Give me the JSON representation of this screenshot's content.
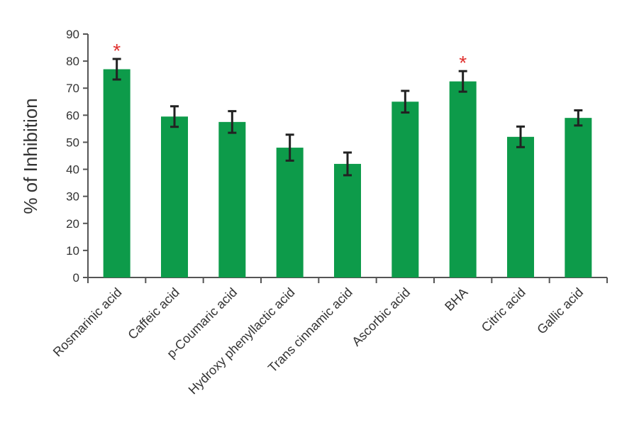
{
  "chart_data": {
    "type": "bar",
    "title": "",
    "xlabel": "",
    "ylabel": "% of Inhibition",
    "ylim": [
      0,
      90
    ],
    "yticks": [
      0,
      10,
      20,
      30,
      40,
      50,
      60,
      70,
      80,
      90
    ],
    "grid": false,
    "categories": [
      "Rosmarinic acid",
      "Caffeic acid",
      "p-Coumaric acid",
      "Hydroxy phenyllactic acid",
      "Trans cinnamic acid",
      "Ascorbic acid",
      "BHA",
      "Citric acid",
      "Gallic acid"
    ],
    "values": [
      77,
      59.5,
      57.5,
      48,
      42,
      65,
      72.5,
      52,
      59
    ],
    "errors": [
      3.8,
      3.8,
      4,
      4.8,
      4.2,
      4,
      3.8,
      3.8,
      2.8
    ],
    "significance": [
      "*",
      "",
      "",
      "",
      "",
      "",
      "*",
      "",
      ""
    ],
    "colors": {
      "bar": "#0d9b4a",
      "error_bar": "#222222",
      "significance": "#e0302e",
      "axis": "#555555"
    }
  }
}
